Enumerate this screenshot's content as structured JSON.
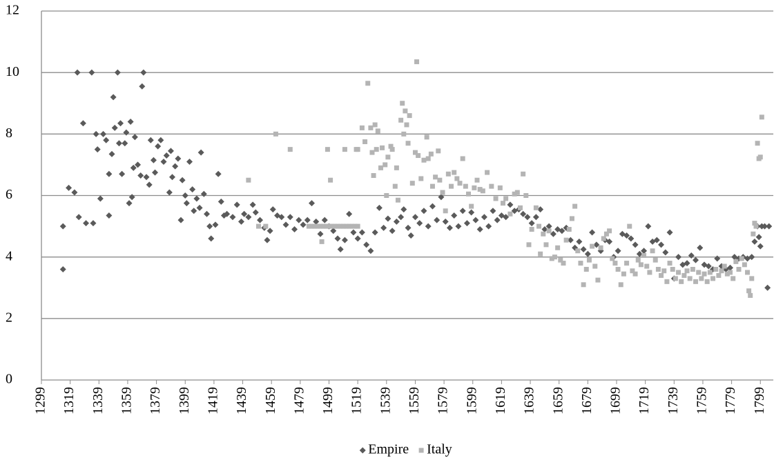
{
  "chart_data": {
    "type": "scatter",
    "xlim": [
      1299,
      1808
    ],
    "xticks": [
      1299,
      1319,
      1339,
      1359,
      1379,
      1399,
      1419,
      1439,
      1459,
      1479,
      1499,
      1519,
      1539,
      1559,
      1579,
      1599,
      1619,
      1639,
      1659,
      1679,
      1699,
      1719,
      1739,
      1759,
      1779,
      1799
    ],
    "ylim": [
      0,
      12
    ],
    "yticks": [
      0,
      2,
      4,
      6,
      8,
      10,
      12
    ],
    "grid": true,
    "legend": "bottom",
    "series": [
      {
        "name": "Empire",
        "color": "#5a5a5a",
        "marker": "diamond",
        "x": [
          1314,
          1314,
          1318,
          1322,
          1324,
          1325,
          1328,
          1330,
          1334,
          1335,
          1337,
          1338,
          1340,
          1342,
          1344,
          1346,
          1346,
          1348,
          1349,
          1350,
          1352,
          1353,
          1354,
          1355,
          1357,
          1358,
          1360,
          1361,
          1362,
          1363,
          1364,
          1366,
          1368,
          1370,
          1369,
          1372,
          1374,
          1375,
          1377,
          1378,
          1380,
          1382,
          1384,
          1386,
          1388,
          1389,
          1390,
          1392,
          1394,
          1396,
          1397,
          1399,
          1400,
          1402,
          1404,
          1405,
          1407,
          1409,
          1410,
          1412,
          1414,
          1416,
          1417,
          1420,
          1422,
          1424,
          1426,
          1428,
          1432,
          1435,
          1438,
          1440,
          1443,
          1446,
          1448,
          1451,
          1454,
          1456,
          1458,
          1460,
          1463,
          1466,
          1469,
          1472,
          1475,
          1478,
          1481,
          1484,
          1487,
          1490,
          1493,
          1496,
          1499,
          1502,
          1505,
          1507,
          1510,
          1513,
          1516,
          1519,
          1522,
          1525,
          1528,
          1531,
          1534,
          1537,
          1540,
          1543,
          1546,
          1549,
          1551,
          1554,
          1556,
          1559,
          1562,
          1565,
          1568,
          1571,
          1574,
          1577,
          1580,
          1583,
          1586,
          1589,
          1592,
          1595,
          1598,
          1601,
          1604,
          1607,
          1610,
          1613,
          1616,
          1619,
          1622,
          1625,
          1628,
          1631,
          1634,
          1637,
          1640,
          1643,
          1646,
          1649,
          1652,
          1655,
          1658,
          1661,
          1664,
          1667,
          1670,
          1673,
          1676,
          1679,
          1682,
          1685,
          1688,
          1691,
          1694,
          1697,
          1700,
          1703,
          1706,
          1709,
          1712,
          1715,
          1718,
          1721,
          1724,
          1727,
          1730,
          1733,
          1736,
          1739,
          1742,
          1745,
          1748,
          1751,
          1754,
          1757,
          1760,
          1763,
          1766,
          1769,
          1772,
          1775,
          1778,
          1781,
          1784,
          1787,
          1790,
          1793,
          1795,
          1797,
          1798,
          1799,
          1800,
          1802,
          1804,
          1805
        ],
        "values": [
          5.0,
          3.6,
          6.25,
          6.1,
          10,
          5.3,
          8.35,
          5.1,
          10,
          5.1,
          8.0,
          7.5,
          5.9,
          8.0,
          7.8,
          6.7,
          5.35,
          7.35,
          9.2,
          8.2,
          10,
          7.7,
          8.35,
          6.7,
          7.7,
          8.05,
          5.75,
          8.4,
          5.95,
          6.9,
          7.9,
          7.0,
          6.65,
          10,
          9.55,
          6.6,
          6.35,
          7.8,
          7.15,
          6.75,
          7.6,
          7.8,
          7.1,
          7.3,
          6.1,
          7.45,
          6.6,
          6.95,
          7.2,
          5.2,
          6.5,
          6.0,
          5.75,
          7.1,
          6.2,
          5.5,
          5.9,
          5.6,
          7.4,
          6.05,
          5.4,
          5.0,
          4.6,
          5.05,
          6.7,
          5.8,
          5.35,
          5.4,
          5.3,
          5.7,
          5.15,
          5.4,
          5.3,
          5.7,
          5.45,
          5.2,
          4.95,
          4.55,
          4.85,
          5.55,
          5.35,
          5.3,
          5.05,
          5.3,
          4.9,
          5.2,
          5.05,
          5.2,
          5.75,
          5.15,
          4.75,
          5.2,
          5.0,
          4.85,
          4.6,
          4.25,
          4.55,
          5.4,
          4.8,
          4.6,
          4.8,
          4.4,
          4.2,
          4.8,
          5.6,
          4.95,
          5.25,
          4.85,
          5.15,
          5.3,
          5.55,
          4.95,
          4.7,
          5.3,
          5.1,
          5.5,
          5.0,
          5.65,
          5.2,
          5.95,
          5.15,
          4.95,
          5.35,
          5.0,
          5.5,
          5.1,
          5.45,
          5.2,
          4.9,
          5.3,
          5.0,
          5.5,
          5.2,
          5.35,
          5.3,
          5.7,
          5.5,
          5.55,
          5.4,
          5.3,
          5.1,
          5.3,
          5.55,
          4.9,
          5.0,
          4.75,
          4.9,
          4.85,
          4.95,
          4.55,
          4.3,
          4.5,
          4.25,
          4.1,
          4.8,
          4.4,
          4.2,
          4.55,
          4.5,
          4.0,
          4.2,
          4.75,
          4.7,
          4.6,
          4.4,
          4.1,
          4.2,
          5.0,
          4.5,
          4.55,
          4.4,
          4.15,
          4.8,
          3.3,
          4.0,
          3.75,
          3.8,
          4.05,
          3.9,
          4.3,
          3.75,
          3.7,
          3.6,
          3.95,
          3.7,
          3.6,
          3.65,
          4.0,
          3.95,
          4.0,
          3.95,
          4.0,
          4.5,
          5.0,
          4.65,
          4.35,
          5.0,
          5.0,
          3.0,
          5.0
        ]
      },
      {
        "name": "Italy",
        "color": "#b4b4b4",
        "marker": "square",
        "x": [
          1443,
          1450,
          1455,
          1462,
          1472,
          1485,
          1487,
          1489,
          1491,
          1493,
          1495,
          1497,
          1499,
          1501,
          1503,
          1505,
          1507,
          1509,
          1511,
          1513,
          1515,
          1517,
          1519,
          1494,
          1498,
          1500,
          1510,
          1518,
          1519,
          1522,
          1524,
          1526,
          1528,
          1529,
          1530,
          1531,
          1532,
          1533,
          1535,
          1536,
          1538,
          1539,
          1540,
          1542,
          1543,
          1545,
          1546,
          1547,
          1549,
          1550,
          1551,
          1552,
          1553,
          1554,
          1555,
          1557,
          1559,
          1560,
          1561,
          1563,
          1565,
          1567,
          1568,
          1570,
          1571,
          1573,
          1575,
          1576,
          1578,
          1580,
          1582,
          1584,
          1586,
          1588,
          1590,
          1592,
          1594,
          1596,
          1598,
          1600,
          1602,
          1604,
          1606,
          1609,
          1612,
          1615,
          1618,
          1620,
          1622,
          1625,
          1628,
          1630,
          1632,
          1634,
          1636,
          1638,
          1640,
          1643,
          1645,
          1646,
          1648,
          1650,
          1652,
          1654,
          1656,
          1658,
          1660,
          1662,
          1664,
          1666,
          1668,
          1670,
          1672,
          1674,
          1676,
          1678,
          1680,
          1682,
          1684,
          1686,
          1688,
          1690,
          1692,
          1694,
          1696,
          1698,
          1700,
          1702,
          1704,
          1706,
          1708,
          1710,
          1712,
          1714,
          1716,
          1718,
          1720,
          1722,
          1724,
          1726,
          1728,
          1730,
          1732,
          1734,
          1736,
          1738,
          1740,
          1742,
          1744,
          1746,
          1748,
          1750,
          1752,
          1754,
          1756,
          1758,
          1760,
          1762,
          1764,
          1766,
          1768,
          1770,
          1772,
          1774,
          1776,
          1778,
          1780,
          1782,
          1784,
          1786,
          1788,
          1790,
          1791,
          1792,
          1793,
          1794,
          1795,
          1796,
          1797,
          1798,
          1799,
          1800
        ],
        "values": [
          6.5,
          5.0,
          5.0,
          8.0,
          7.5,
          5.0,
          5.0,
          5.0,
          5.0,
          5.0,
          5.0,
          5.0,
          5.0,
          5.0,
          5.0,
          5.0,
          5.0,
          5.0,
          5.0,
          5.0,
          5.0,
          5.0,
          5.0,
          4.5,
          7.5,
          6.5,
          7.5,
          7.5,
          7.5,
          8.2,
          7.75,
          9.65,
          8.2,
          7.4,
          6.65,
          8.3,
          7.5,
          8.1,
          6.9,
          7.55,
          7.0,
          6.0,
          7.25,
          7.6,
          7.5,
          6.3,
          6.9,
          5.85,
          8.45,
          9.0,
          8.0,
          8.75,
          8.3,
          7.7,
          8.6,
          6.4,
          7.4,
          10.35,
          7.3,
          6.55,
          7.15,
          7.9,
          7.2,
          7.35,
          6.3,
          6.6,
          7.45,
          6.5,
          6.1,
          5.5,
          6.7,
          6.3,
          6.75,
          6.55,
          6.4,
          7.2,
          6.3,
          6.05,
          5.65,
          6.25,
          6.5,
          6.2,
          6.15,
          6.75,
          6.3,
          5.9,
          6.25,
          5.75,
          5.9,
          5.4,
          6.05,
          6.1,
          5.6,
          6.7,
          6.0,
          4.4,
          4.9,
          5.6,
          5.0,
          4.1,
          4.75,
          4.4,
          4.85,
          3.95,
          4.0,
          4.3,
          3.9,
          3.8,
          4.55,
          4.9,
          5.25,
          5.65,
          4.2,
          3.8,
          3.1,
          3.6,
          3.9,
          4.35,
          3.7,
          3.25,
          4.3,
          4.6,
          4.75,
          4.85,
          3.95,
          3.8,
          3.6,
          3.1,
          3.45,
          3.8,
          5.0,
          3.55,
          3.45,
          3.9,
          3.75,
          4.05,
          3.7,
          3.5,
          4.2,
          3.9,
          3.6,
          3.4,
          3.55,
          3.2,
          3.8,
          3.6,
          3.3,
          3.5,
          3.2,
          3.4,
          3.55,
          3.3,
          3.6,
          3.2,
          3.5,
          3.3,
          3.45,
          3.2,
          3.5,
          3.3,
          3.6,
          3.4,
          3.55,
          3.7,
          3.45,
          3.5,
          3.3,
          3.85,
          3.6,
          3.95,
          3.75,
          3.5,
          2.9,
          2.75,
          3.3,
          4.75,
          5.1,
          5.0,
          7.7,
          7.2,
          7.25,
          8.55
        ]
      }
    ]
  }
}
